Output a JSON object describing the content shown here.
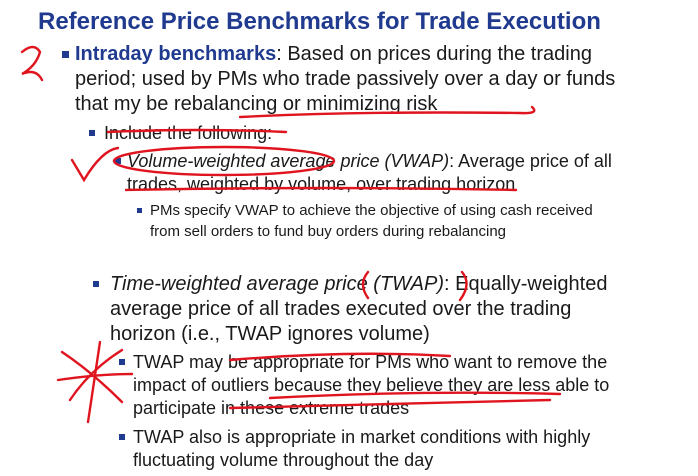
{
  "title": "Reference Price Benchmarks for Trade Execution",
  "intraday": {
    "label": "Intraday benchmarks",
    "text": ": Based on prices during the trading period; used by PMs who trade passively over a day or funds that my be rebalancing or minimizing risk"
  },
  "include": "Include the following:",
  "vwap": {
    "label": "Volume-weighted average price (VWAP)",
    "text": ": Average price of all trades, weighted by volume, over trading horizon",
    "note": "PMs specify VWAP to achieve the objective of using cash received from sell orders to fund buy orders during rebalancing"
  },
  "twap": {
    "label": "Time-weighted average price (TWAP)",
    "text": ": Equally-weighted average price of all trades executed over the trading horizon (i.e., TWAP ignores volume)",
    "notes": [
      "TWAP may be appropriate for PMs who want to remove the impact of outliers because they believe they are less able to participate in these extreme trades",
      "TWAP also is appropriate in market conditions with highly fluctuating volume throughout the day"
    ]
  }
}
